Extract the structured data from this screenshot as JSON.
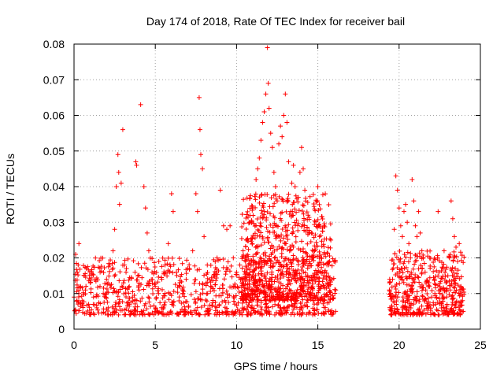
{
  "chart_data": {
    "type": "scatter",
    "title": "Day 174 of 2018, Rate Of TEC Index for receiver bail",
    "xlabel": "GPS time / hours",
    "ylabel": "ROTI / TECUs",
    "xlim": [
      0,
      25
    ],
    "ylim": [
      0,
      0.08
    ],
    "xticks": [
      0,
      5,
      10,
      15,
      20,
      25
    ],
    "xtick_labels": [
      "0",
      "5",
      "10",
      "15",
      "20",
      "25"
    ],
    "yticks": [
      0,
      0.01,
      0.02,
      0.03,
      0.04,
      0.05,
      0.06,
      0.07,
      0.08
    ],
    "ytick_labels": [
      "0",
      "0.01",
      "0.02",
      "0.03",
      "0.04",
      "0.05",
      "0.06",
      "0.07",
      "0.08"
    ],
    "grid": true,
    "marker": "+",
    "color": "#ff0000",
    "data_gap_hours": [
      16.1,
      19.4
    ],
    "series": [
      {
        "name": "ROTI",
        "points": [
          [
            0.0,
            0.009
          ],
          [
            0.1,
            0.021
          ],
          [
            0.2,
            0.016
          ],
          [
            0.3,
            0.024
          ],
          [
            0.4,
            0.012
          ],
          [
            0.5,
            0.008
          ],
          [
            0.7,
            0.011
          ],
          [
            0.9,
            0.007
          ],
          [
            1.0,
            0.013
          ],
          [
            1.2,
            0.009
          ],
          [
            1.4,
            0.006
          ],
          [
            1.6,
            0.012
          ],
          [
            1.8,
            0.01
          ],
          [
            2.0,
            0.014
          ],
          [
            2.2,
            0.018
          ],
          [
            2.4,
            0.022
          ],
          [
            2.5,
            0.028
          ],
          [
            2.6,
            0.04
          ],
          [
            2.7,
            0.049
          ],
          [
            2.75,
            0.044
          ],
          [
            2.8,
            0.035
          ],
          [
            2.9,
            0.041
          ],
          [
            3.0,
            0.056
          ],
          [
            3.2,
            0.016
          ],
          [
            3.4,
            0.012
          ],
          [
            3.6,
            0.009
          ],
          [
            3.8,
            0.047
          ],
          [
            3.85,
            0.046
          ],
          [
            4.0,
            0.011
          ],
          [
            4.1,
            0.063
          ],
          [
            4.3,
            0.04
          ],
          [
            4.4,
            0.034
          ],
          [
            4.5,
            0.027
          ],
          [
            4.6,
            0.022
          ],
          [
            4.8,
            0.016
          ],
          [
            5.0,
            0.012
          ],
          [
            5.2,
            0.01
          ],
          [
            5.4,
            0.014
          ],
          [
            5.6,
            0.018
          ],
          [
            5.8,
            0.024
          ],
          [
            6.0,
            0.038
          ],
          [
            6.1,
            0.033
          ],
          [
            6.3,
            0.016
          ],
          [
            6.5,
            0.012
          ],
          [
            6.7,
            0.01
          ],
          [
            6.9,
            0.014
          ],
          [
            7.1,
            0.017
          ],
          [
            7.3,
            0.022
          ],
          [
            7.5,
            0.038
          ],
          [
            7.6,
            0.033
          ],
          [
            7.7,
            0.065
          ],
          [
            7.75,
            0.056
          ],
          [
            7.8,
            0.049
          ],
          [
            7.9,
            0.045
          ],
          [
            8.0,
            0.026
          ],
          [
            8.2,
            0.018
          ],
          [
            8.4,
            0.012
          ],
          [
            8.6,
            0.015
          ],
          [
            8.8,
            0.02
          ],
          [
            9.0,
            0.039
          ],
          [
            9.2,
            0.029
          ],
          [
            9.4,
            0.028
          ],
          [
            9.6,
            0.029
          ],
          [
            9.8,
            0.02
          ],
          [
            10.0,
            0.016
          ],
          [
            10.2,
            0.018
          ],
          [
            10.4,
            0.022
          ],
          [
            10.6,
            0.025
          ],
          [
            10.8,
            0.03
          ],
          [
            11.0,
            0.034
          ],
          [
            11.2,
            0.042
          ],
          [
            11.3,
            0.045
          ],
          [
            11.4,
            0.048
          ],
          [
            11.5,
            0.053
          ],
          [
            11.6,
            0.058
          ],
          [
            11.7,
            0.061
          ],
          [
            11.8,
            0.066
          ],
          [
            11.9,
            0.079
          ],
          [
            11.95,
            0.069
          ],
          [
            12.0,
            0.062
          ],
          [
            12.1,
            0.055
          ],
          [
            12.2,
            0.051
          ],
          [
            12.3,
            0.044
          ],
          [
            12.4,
            0.04
          ],
          [
            12.5,
            0.036
          ],
          [
            12.6,
            0.052
          ],
          [
            12.7,
            0.057
          ],
          [
            12.8,
            0.054
          ],
          [
            12.9,
            0.06
          ],
          [
            13.0,
            0.066
          ],
          [
            13.1,
            0.058
          ],
          [
            13.2,
            0.047
          ],
          [
            13.4,
            0.041
          ],
          [
            13.5,
            0.046
          ],
          [
            13.6,
            0.04
          ],
          [
            13.8,
            0.037
          ],
          [
            13.9,
            0.044
          ],
          [
            14.0,
            0.051
          ],
          [
            14.1,
            0.045
          ],
          [
            14.2,
            0.039
          ],
          [
            14.4,
            0.032
          ],
          [
            14.6,
            0.027
          ],
          [
            14.8,
            0.022
          ],
          [
            15.0,
            0.04
          ],
          [
            15.1,
            0.026
          ],
          [
            15.2,
            0.02
          ],
          [
            15.4,
            0.016
          ],
          [
            15.6,
            0.013
          ],
          [
            15.8,
            0.025
          ],
          [
            16.0,
            0.019
          ],
          [
            16.1,
            0.011
          ],
          [
            19.4,
            0.011
          ],
          [
            19.6,
            0.014
          ],
          [
            19.7,
            0.028
          ],
          [
            19.8,
            0.043
          ],
          [
            19.9,
            0.039
          ],
          [
            20.0,
            0.034
          ],
          [
            20.1,
            0.029
          ],
          [
            20.2,
            0.026
          ],
          [
            20.3,
            0.033
          ],
          [
            20.4,
            0.035
          ],
          [
            20.5,
            0.03
          ],
          [
            20.6,
            0.024
          ],
          [
            20.7,
            0.02
          ],
          [
            20.8,
            0.042
          ],
          [
            20.9,
            0.036
          ],
          [
            21.0,
            0.029
          ],
          [
            21.1,
            0.026
          ],
          [
            21.2,
            0.033
          ],
          [
            21.3,
            0.027
          ],
          [
            21.4,
            0.022
          ],
          [
            21.6,
            0.016
          ],
          [
            21.8,
            0.012
          ],
          [
            22.0,
            0.009
          ],
          [
            22.2,
            0.01
          ],
          [
            22.4,
            0.033
          ],
          [
            22.5,
            0.012
          ],
          [
            22.7,
            0.009
          ],
          [
            22.9,
            0.011
          ],
          [
            23.0,
            0.015
          ],
          [
            23.1,
            0.02
          ],
          [
            23.2,
            0.036
          ],
          [
            23.3,
            0.031
          ],
          [
            23.4,
            0.026
          ],
          [
            23.5,
            0.023
          ],
          [
            23.6,
            0.019
          ],
          [
            23.7,
            0.024
          ],
          [
            23.8,
            0.012
          ],
          [
            23.9,
            0.008
          ],
          [
            23.95,
            0.005
          ]
        ],
        "baseline": {
          "description_free": true,
          "segments": [
            {
              "x_start": 0.0,
              "x_end": 16.1,
              "y_min": 0.004,
              "y_max": 0.02,
              "count": 950
            },
            {
              "x_start": 10.3,
              "x_end": 15.8,
              "y_min": 0.008,
              "y_max": 0.038,
              "count": 700
            },
            {
              "x_start": 19.4,
              "x_end": 24.0,
              "y_min": 0.004,
              "y_max": 0.022,
              "count": 450
            }
          ]
        }
      }
    ]
  }
}
